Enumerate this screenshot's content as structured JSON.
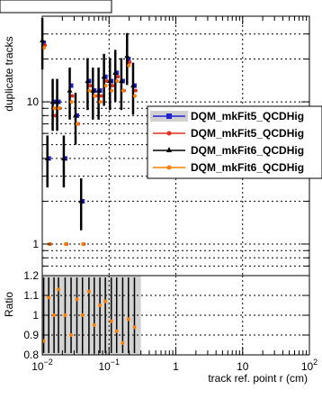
{
  "chart_data": {
    "type": "scatter",
    "x_scale": "log",
    "y_scale": "log",
    "top": {
      "ylabel": "duplicate tracks",
      "ylim": [
        0.6,
        40
      ],
      "y_ticks": [
        {
          "value": 1,
          "label": "1"
        },
        {
          "value": 10,
          "label": "10"
        }
      ],
      "grid": true,
      "legend": {
        "placement": "right",
        "entries": [
          {
            "label": "DQM_mkFit5_QCDHig",
            "color": "#1f1fd6",
            "marker": "square",
            "fill": "#d0d0d0"
          },
          {
            "label": "DQM_mkFit5_QCDHig",
            "color": "#e0301e",
            "marker": "dot"
          },
          {
            "label": "DQM_mkFit6_QCDHig",
            "color": "#000000",
            "marker": "triangle"
          },
          {
            "label": "DQM_mkFit6_QCDHig",
            "color": "#ff8000",
            "marker": "dot"
          }
        ]
      },
      "series": [
        {
          "color": "#1f1fd6",
          "points": [
            {
              "x": 0.0105,
              "y": 26
            },
            {
              "x": 0.0125,
              "y": 4
            },
            {
              "x": 0.015,
              "y": 10
            },
            {
              "x": 0.0175,
              "y": 10
            },
            {
              "x": 0.022,
              "y": 4
            },
            {
              "x": 0.027,
              "y": 13
            },
            {
              "x": 0.033,
              "y": 8
            },
            {
              "x": 0.04,
              "y": 2
            },
            {
              "x": 0.05,
              "y": 14
            },
            {
              "x": 0.06,
              "y": 12
            },
            {
              "x": 0.073,
              "y": 12
            },
            {
              "x": 0.088,
              "y": 15
            },
            {
              "x": 0.108,
              "y": 14
            },
            {
              "x": 0.13,
              "y": 16
            },
            {
              "x": 0.16,
              "y": 14
            },
            {
              "x": 0.195,
              "y": 20
            },
            {
              "x": 0.24,
              "y": 13
            }
          ]
        },
        {
          "color": "#e0301e",
          "points": [
            {
              "x": 0.0105,
              "y": 25
            },
            {
              "x": 0.0125,
              "y": 1
            },
            {
              "x": 0.015,
              "y": 8
            },
            {
              "x": 0.0175,
              "y": 9
            },
            {
              "x": 0.022,
              "y": 1
            },
            {
              "x": 0.027,
              "y": 11
            },
            {
              "x": 0.033,
              "y": 7
            },
            {
              "x": 0.04,
              "y": 1
            },
            {
              "x": 0.05,
              "y": 13
            },
            {
              "x": 0.06,
              "y": 11
            },
            {
              "x": 0.073,
              "y": 11
            },
            {
              "x": 0.088,
              "y": 14
            },
            {
              "x": 0.108,
              "y": 13
            },
            {
              "x": 0.13,
              "y": 15
            },
            {
              "x": 0.16,
              "y": 12
            },
            {
              "x": 0.195,
              "y": 19
            },
            {
              "x": 0.24,
              "y": 12
            }
          ]
        },
        {
          "color": "#000000",
          "points": [
            {
              "x": 0.0105,
              "y": 27
            },
            {
              "x": 0.0125,
              "y": 4
            },
            {
              "x": 0.015,
              "y": 10
            },
            {
              "x": 0.0175,
              "y": 10
            },
            {
              "x": 0.022,
              "y": 4
            },
            {
              "x": 0.027,
              "y": 12
            },
            {
              "x": 0.033,
              "y": 8
            },
            {
              "x": 0.04,
              "y": 2
            },
            {
              "x": 0.05,
              "y": 14
            },
            {
              "x": 0.06,
              "y": 12
            },
            {
              "x": 0.073,
              "y": 12
            },
            {
              "x": 0.088,
              "y": 15
            },
            {
              "x": 0.108,
              "y": 14
            },
            {
              "x": 0.13,
              "y": 16
            },
            {
              "x": 0.16,
              "y": 14
            },
            {
              "x": 0.195,
              "y": 21
            },
            {
              "x": 0.24,
              "y": 13
            }
          ]
        },
        {
          "color": "#ff8000",
          "points": [
            {
              "x": 0.0105,
              "y": 24
            },
            {
              "x": 0.0125,
              "y": 1
            },
            {
              "x": 0.015,
              "y": 9
            },
            {
              "x": 0.0175,
              "y": 9
            },
            {
              "x": 0.022,
              "y": 1
            },
            {
              "x": 0.027,
              "y": 10
            },
            {
              "x": 0.033,
              "y": 7
            },
            {
              "x": 0.04,
              "y": 1
            },
            {
              "x": 0.05,
              "y": 12
            },
            {
              "x": 0.06,
              "y": 11
            },
            {
              "x": 0.073,
              "y": 10
            },
            {
              "x": 0.088,
              "y": 13
            },
            {
              "x": 0.108,
              "y": 12
            },
            {
              "x": 0.13,
              "y": 14
            },
            {
              "x": 0.16,
              "y": 12
            },
            {
              "x": 0.195,
              "y": 18
            },
            {
              "x": 0.24,
              "y": 11
            }
          ]
        }
      ]
    },
    "ratio": {
      "ylabel": "Ratio",
      "ylim": [
        0.8,
        1.2
      ],
      "y_ticks": [
        {
          "value": 0.8,
          "label": "0.8"
        },
        {
          "value": 0.9,
          "label": "0.9"
        },
        {
          "value": 1.0,
          "label": "1"
        },
        {
          "value": 1.1,
          "label": "1.1"
        },
        {
          "value": 1.2,
          "label": "1.2"
        }
      ],
      "band": {
        "xmin": 0.01,
        "xmax": 0.3,
        "color": "#d3d3d3"
      },
      "grid": true,
      "points": [
        {
          "x": 0.0105,
          "y": 0.87
        },
        {
          "x": 0.0125,
          "y": 1.09
        },
        {
          "x": 0.015,
          "y": 1.0
        },
        {
          "x": 0.0175,
          "y": 1.13
        },
        {
          "x": 0.022,
          "y": 1.0
        },
        {
          "x": 0.027,
          "y": 0.9
        },
        {
          "x": 0.033,
          "y": 1.08
        },
        {
          "x": 0.04,
          "y": 1.0
        },
        {
          "x": 0.05,
          "y": 1.12
        },
        {
          "x": 0.06,
          "y": 0.95
        },
        {
          "x": 0.073,
          "y": 1.05
        },
        {
          "x": 0.088,
          "y": 1.07
        },
        {
          "x": 0.108,
          "y": 0.97
        },
        {
          "x": 0.13,
          "y": 0.92
        },
        {
          "x": 0.16,
          "y": 0.86
        },
        {
          "x": 0.195,
          "y": 0.98
        },
        {
          "x": 0.24,
          "y": 0.94
        }
      ]
    },
    "xlabel": "track ref. point r (cm)",
    "xlim": [
      0.01,
      100
    ],
    "x_ticks": [
      {
        "value": 0.01,
        "base": "10",
        "exp": "−2"
      },
      {
        "value": 0.1,
        "base": "10",
        "exp": "−1"
      },
      {
        "value": 1,
        "base": "1",
        "exp": ""
      },
      {
        "value": 10,
        "base": "10",
        "exp": ""
      },
      {
        "value": 100,
        "base": "10",
        "exp": "2"
      }
    ]
  }
}
